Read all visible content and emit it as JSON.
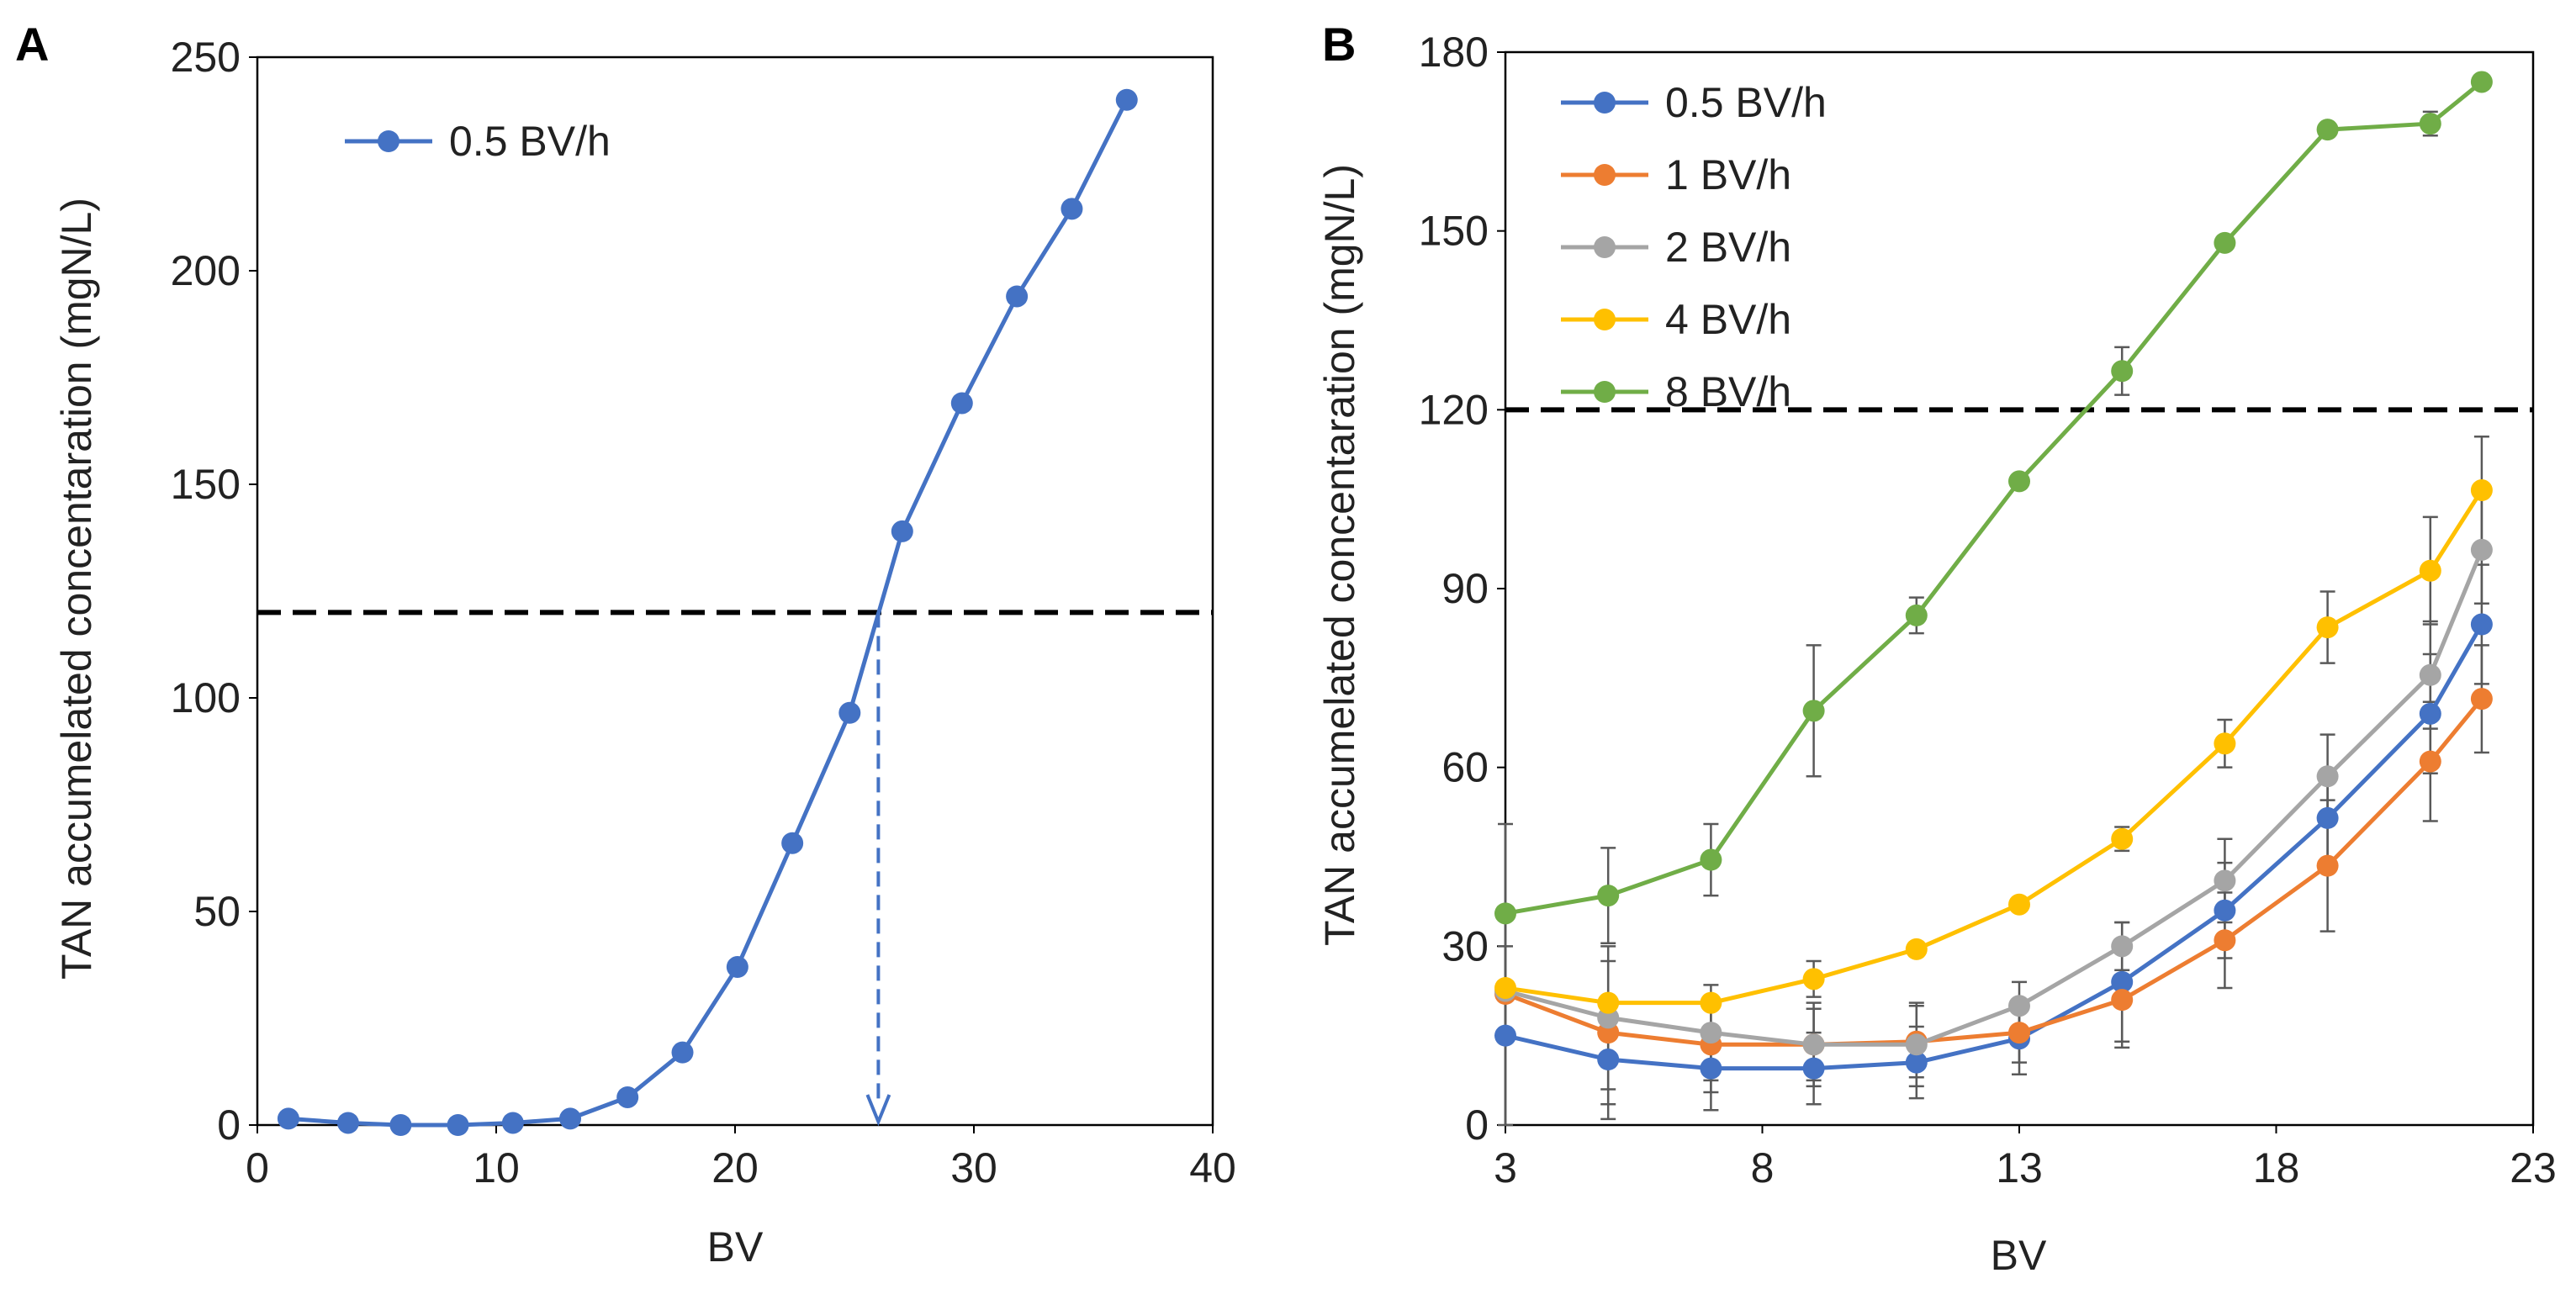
{
  "chart_data": [
    {
      "type": "line",
      "panel_label": "A",
      "xlabel": "BV",
      "ylabel": "TAN accumelated concentaration (mgN/L)",
      "xlim": [
        0,
        40
      ],
      "ylim": [
        0,
        250
      ],
      "x_ticks": [
        "0",
        "10",
        "20",
        "30",
        "40"
      ],
      "y_ticks": [
        "0",
        "50",
        "100",
        "150",
        "200",
        "250"
      ],
      "legend_position": "top-left",
      "reference_line_y": 120,
      "reference_arrow_x": 26,
      "series": [
        {
          "name": "0.5 BV/h",
          "color": "#4472C4",
          "x": [
            1.3,
            3.8,
            6.0,
            8.4,
            10.7,
            13.1,
            15.5,
            17.8,
            20.1,
            22.4,
            24.8,
            27.0,
            29.5,
            31.8,
            34.1,
            36.4
          ],
          "y": [
            1.5,
            0.5,
            0,
            0,
            0.5,
            1.5,
            6.5,
            17,
            37,
            66,
            96.5,
            139,
            169,
            194,
            214.5,
            240
          ]
        }
      ]
    },
    {
      "type": "line",
      "panel_label": "B",
      "xlabel": "BV",
      "ylabel": "TAN accumelated concentaration (mgN/L)",
      "xlim": [
        3,
        23
      ],
      "ylim": [
        0,
        180
      ],
      "x_ticks": [
        "3",
        "8",
        "13",
        "18",
        "23"
      ],
      "y_ticks": [
        "0",
        "30",
        "60",
        "90",
        "120",
        "150",
        "180"
      ],
      "legend_position": "top-left",
      "reference_line_y": 120,
      "x": [
        3,
        5,
        7,
        9,
        11,
        13,
        15,
        17,
        19,
        21,
        22
      ],
      "series": [
        {
          "name": "0.5 BV/h",
          "color": "#4472C4",
          "y": [
            15,
            11,
            9.5,
            9.5,
            10.5,
            14.5,
            24,
            36,
            51.5,
            69,
            84
          ],
          "err": [
            0,
            10,
            7,
            6,
            6,
            6,
            10,
            8,
            8,
            10,
            10
          ]
        },
        {
          "name": "1 BV/h",
          "color": "#ED7D31",
          "y": [
            22,
            15.5,
            13.5,
            13.5,
            14,
            15.5,
            21,
            31,
            43.5,
            61,
            71.5
          ],
          "err": [
            8,
            12,
            8,
            6,
            6,
            5,
            8,
            8,
            11,
            10,
            9
          ]
        },
        {
          "name": "2 BV/h",
          "color": "#A5A5A5",
          "y": [
            22.5,
            18,
            15.5,
            13.5,
            13.5,
            20,
            30,
            41,
            58.5,
            75.5,
            96.5
          ],
          "err": [
            28,
            12,
            8,
            7,
            7,
            4,
            4,
            7,
            7,
            9,
            9
          ]
        },
        {
          "name": "4 BV/h",
          "color": "#FFC000",
          "y": [
            23,
            20.5,
            20.5,
            24.5,
            29.5,
            37,
            48,
            64,
            83.5,
            93,
            106.5
          ],
          "err": [
            0,
            0,
            0,
            3,
            0,
            0,
            2,
            4,
            6,
            9,
            9
          ]
        },
        {
          "name": "8 BV/h",
          "color": "#70AD47",
          "y": [
            35.5,
            38.5,
            44.5,
            69.5,
            85.5,
            108,
            126.5,
            148,
            167,
            168,
            175
          ],
          "err": [
            0,
            8,
            6,
            11,
            3,
            0,
            4,
            1,
            0,
            2,
            0
          ]
        }
      ]
    }
  ]
}
